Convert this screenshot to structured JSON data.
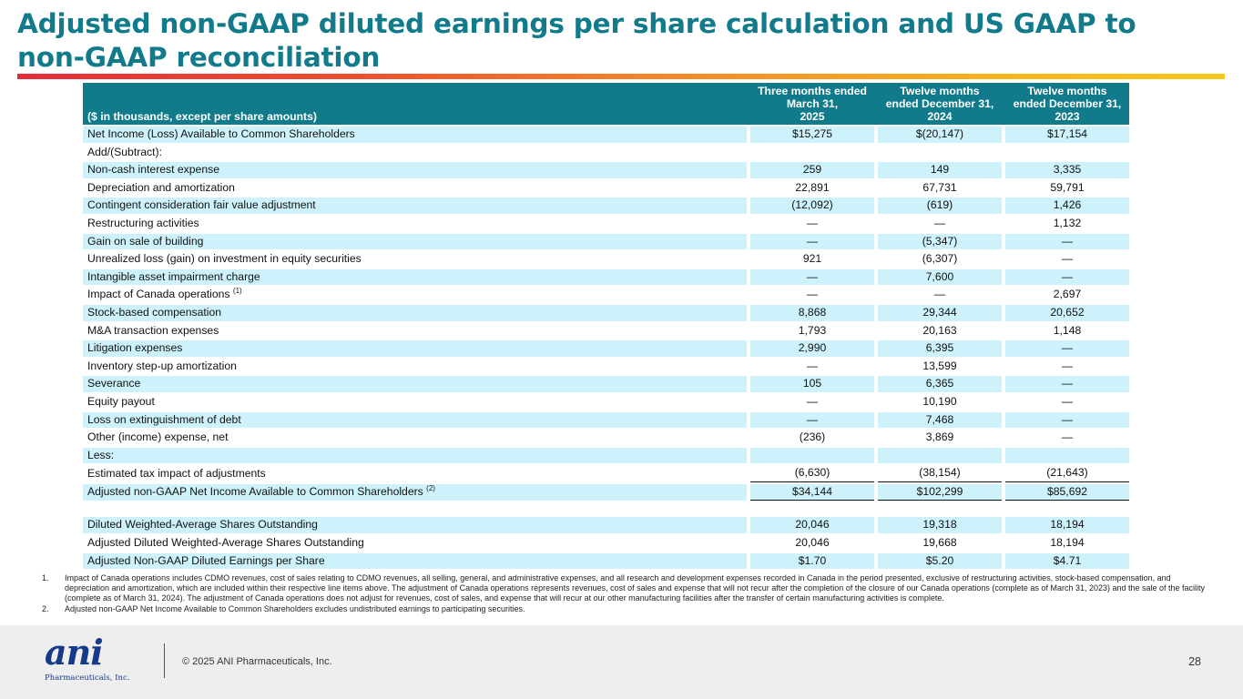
{
  "title": "Adjusted non-GAAP diluted earnings per share calculation and US GAAP to non-GAAP reconciliation",
  "table": {
    "label_header": "($ in thousands, except per share amounts)",
    "columns": [
      {
        "l1": "Three months ended",
        "l2": "March 31,",
        "year": "2025"
      },
      {
        "l1": "Twelve months",
        "l2": "ended December 31,",
        "year": "2024"
      },
      {
        "l1": "Twelve months",
        "l2": "ended December 31,",
        "year": "2023"
      }
    ],
    "rows": [
      {
        "label": "Net Income (Loss) Available to Common Shareholders",
        "values": [
          "$15,275",
          "$(20,147)",
          "$17,154"
        ]
      },
      {
        "label": "Add/(Subtract):",
        "values": [
          "",
          "",
          ""
        ]
      },
      {
        "label": "Non-cash interest expense",
        "values": [
          "259",
          "149",
          "3,335"
        ]
      },
      {
        "label": "Depreciation and amortization",
        "values": [
          "22,891",
          "67,731",
          "59,791"
        ]
      },
      {
        "label": "Contingent consideration fair value adjustment",
        "values": [
          "(12,092)",
          "(619)",
          "1,426"
        ]
      },
      {
        "label": "Restructuring activities",
        "values": [
          "—",
          "—",
          "1,132"
        ]
      },
      {
        "label": "Gain on sale of building",
        "values": [
          "—",
          "(5,347)",
          "—"
        ]
      },
      {
        "label": "Unrealized loss (gain) on investment in equity securities",
        "values": [
          "921",
          "(6,307)",
          "—"
        ]
      },
      {
        "label": "Intangible asset impairment charge",
        "values": [
          "—",
          "7,600",
          "—"
        ]
      },
      {
        "label": "Impact of Canada operations",
        "sup": "(1)",
        "values": [
          "—",
          "—",
          "2,697"
        ]
      },
      {
        "label": "Stock-based compensation",
        "values": [
          "8,868",
          "29,344",
          "20,652"
        ]
      },
      {
        "label": "M&A transaction expenses",
        "values": [
          "1,793",
          "20,163",
          "1,148"
        ]
      },
      {
        "label": "Litigation expenses",
        "values": [
          "2,990",
          "6,395",
          "—"
        ]
      },
      {
        "label": "Inventory step-up amortization",
        "values": [
          "—",
          "13,599",
          "—"
        ]
      },
      {
        "label": "Severance",
        "values": [
          "105",
          "6,365",
          "—"
        ]
      },
      {
        "label": "Equity payout",
        "values": [
          "—",
          "10,190",
          "—"
        ]
      },
      {
        "label": "Loss on extinguishment of debt",
        "values": [
          "—",
          "7,468",
          "—"
        ]
      },
      {
        "label": "Other (income) expense, net",
        "values": [
          "(236)",
          "3,869",
          "—"
        ]
      },
      {
        "label": "Less:",
        "values": [
          "",
          "",
          ""
        ]
      },
      {
        "label": "Estimated tax impact of adjustments",
        "values": [
          "(6,630)",
          "(38,154)",
          "(21,643)"
        ]
      },
      {
        "label": "Adjusted non-GAAP Net Income Available to Common Shareholders",
        "sup": "(2)",
        "values": [
          "$34,144",
          "$102,299",
          "$85,692"
        ]
      },
      {
        "label": "Diluted Weighted-Average Shares Outstanding",
        "values": [
          "20,046",
          "19,318",
          "18,194"
        ]
      },
      {
        "label": "Adjusted Diluted Weighted-Average Shares Outstanding",
        "values": [
          "20,046",
          "19,668",
          "18,194"
        ]
      },
      {
        "label": "Adjusted Non-GAAP Diluted Earnings per Share",
        "values": [
          "$1.70",
          "$5.20",
          "$4.71"
        ]
      }
    ]
  },
  "footnotes": [
    {
      "num": "1.",
      "text": "Impact of Canada operations includes CDMO revenues, cost of sales relating to CDMO revenues, all selling, general, and administrative expenses, and all research and development expenses recorded in Canada in the period presented, exclusive of restructuring activities, stock-based compensation, and depreciation and amortization, which are included within their respective line items above. The adjustment of Canada operations represents revenues, cost of sales and expense that will not recur after the completion of the closure of our Canada operations (complete as of March 31, 2023) and the sale of the facility (complete as of March 31, 2024). The adjustment of Canada operations does not adjust for revenues, cost of sales, and expense that will recur at our other manufacturing facilities after the transfer of certain manufacturing activities is complete."
    },
    {
      "num": "2.",
      "text": "Adjusted non-GAAP Net Income Available to Common Shareholders excludes undistributed earnings to participating securities."
    }
  ],
  "footer": {
    "logo_mark": "ani",
    "logo_sub": "Pharmaceuticals, Inc.",
    "copyright": "© 2025 ANI Pharmaceuticals, Inc.",
    "page_number": "28"
  },
  "colors": {
    "header_teal": "#117b8c",
    "row_shade": "#cdf2fb",
    "logo_blue": "#153a8a"
  }
}
